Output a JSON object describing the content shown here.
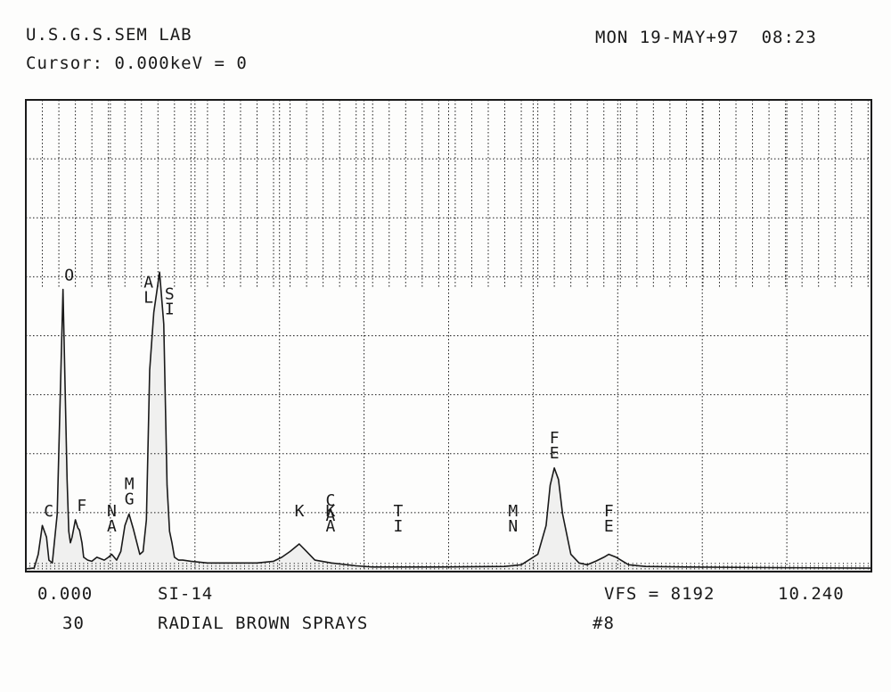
{
  "header": {
    "lab": "U.S.G.S.SEM LAB",
    "cursor": "Cursor: 0.000keV = 0",
    "datetime": "MON 19-MAY+97  08:23"
  },
  "footer": {
    "x_min": "0.000",
    "sample_id": "SI-14",
    "vfs": "VFS = 8192",
    "x_max": "10.240",
    "count": "30",
    "description": "RADIAL BROWN SPRAYS",
    "number": "#8"
  },
  "colors": {
    "ink": "#1a1a1a",
    "paper": "#fdfdfc"
  },
  "chart_data": {
    "type": "line",
    "title": "",
    "xlabel": "keV",
    "ylabel": "",
    "xlim": [
      0,
      10.24
    ],
    "ylim": [
      0,
      8192
    ],
    "grid": true,
    "vertical_grid_step": 1.024,
    "upper_dense_grid_step": 0.2,
    "dense_grid_from_fraction": 0.6,
    "series": [
      {
        "x": [
          0.0,
          0.1,
          0.15,
          0.2,
          0.25,
          0.28,
          0.32,
          0.38,
          0.45,
          0.5,
          0.52,
          0.54,
          0.56,
          0.6,
          0.63,
          0.65,
          0.68,
          0.7,
          0.75,
          0.8,
          0.86,
          0.95,
          1.0,
          1.04,
          1.1,
          1.15,
          1.2,
          1.25,
          1.3,
          1.38,
          1.42,
          1.46,
          1.5,
          1.55,
          1.62,
          1.67,
          1.71,
          1.74,
          1.77,
          1.8,
          1.85,
          1.9,
          2.0,
          2.2,
          2.5,
          2.8,
          3.0,
          3.1,
          3.2,
          3.31,
          3.4,
          3.5,
          3.7,
          4.0,
          4.2,
          5.0,
          5.8,
          6.0,
          6.2,
          6.3,
          6.35,
          6.4,
          6.45,
          6.5,
          6.6,
          6.7,
          6.8,
          6.9,
          7.0,
          7.06,
          7.15,
          7.3,
          7.5,
          8.0,
          9.0,
          10.24
        ],
        "y": [
          50,
          60,
          300,
          800,
          600,
          200,
          150,
          1000,
          4900,
          1600,
          700,
          500,
          600,
          900,
          760,
          720,
          500,
          250,
          200,
          180,
          250,
          200,
          250,
          300,
          200,
          350,
          800,
          1000,
          750,
          300,
          350,
          900,
          3500,
          4500,
          5200,
          4300,
          1500,
          700,
          500,
          250,
          200,
          200,
          180,
          150,
          150,
          150,
          180,
          250,
          350,
          480,
          350,
          200,
          150,
          100,
          80,
          80,
          90,
          120,
          300,
          800,
          1500,
          1800,
          1600,
          1000,
          300,
          150,
          120,
          180,
          250,
          300,
          250,
          120,
          90,
          80,
          70,
          60
        ]
      }
    ],
    "peaks": [
      {
        "label": [
          "C"
        ],
        "x": 0.277
      },
      {
        "label": [
          "O"
        ],
        "x": 0.525
      },
      {
        "label": [
          "F"
        ],
        "x": 0.677
      },
      {
        "label": [
          "N",
          "A"
        ],
        "x": 1.041
      },
      {
        "label": [
          "M",
          "G"
        ],
        "x": 1.254
      },
      {
        "label": [
          "A",
          "L"
        ],
        "x": 1.486
      },
      {
        "label": [
          "S",
          "I"
        ],
        "x": 1.74
      },
      {
        "label": [
          "K"
        ],
        "x": 3.313
      },
      {
        "label": [
          "K",
          "A"
        ],
        "x": 3.69
      },
      {
        "label": [
          "C",
          "A"
        ],
        "x": 3.69
      },
      {
        "label": [
          "T",
          "I"
        ],
        "x": 4.51
      },
      {
        "label": [
          "M",
          "N"
        ],
        "x": 5.9
      },
      {
        "label": [
          "F",
          "E"
        ],
        "x": 6.4
      },
      {
        "label": [
          "F",
          "E"
        ],
        "x": 7.06
      }
    ]
  }
}
